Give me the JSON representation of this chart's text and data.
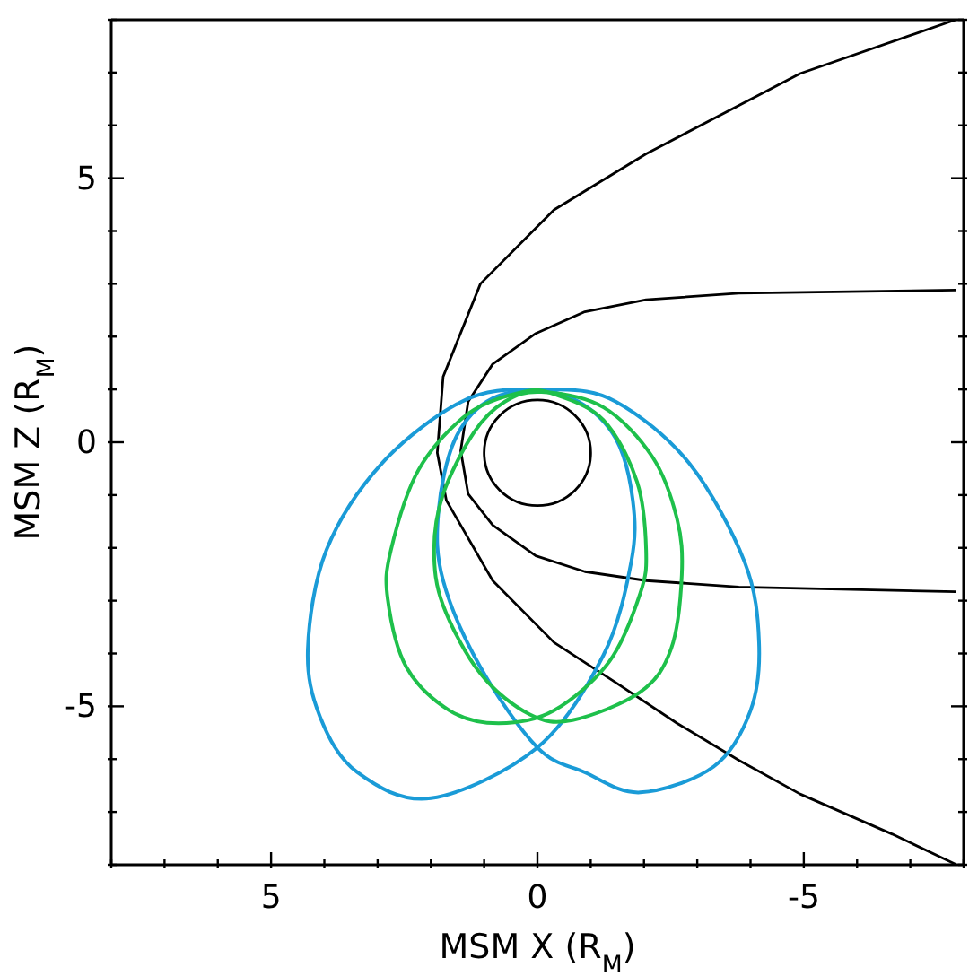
{
  "chart_data": {
    "type": "line",
    "xlabel": "MSM X (R$_{M}$)",
    "ylabel": "MSM Z (R$_{M}$)",
    "xlim": [
      8,
      -8
    ],
    "ylim": [
      -8,
      8
    ],
    "xticks": [
      {
        "value": 8,
        "label": null
      },
      {
        "value": 7,
        "label": null
      },
      {
        "value": 6,
        "label": null
      },
      5,
      {
        "value": 4,
        "label": null
      },
      {
        "value": 3,
        "label": null
      },
      {
        "value": 2,
        "label": null
      },
      {
        "value": 1,
        "label": null
      },
      0,
      {
        "value": -1,
        "label": null
      },
      {
        "value": -2,
        "label": null
      },
      {
        "value": -3,
        "label": null
      },
      {
        "value": -4,
        "label": null
      },
      -5,
      {
        "value": -6,
        "label": null
      },
      {
        "value": -7,
        "label": null
      },
      {
        "value": -8,
        "label": null
      }
    ],
    "yticks": [
      {
        "value": -8,
        "label": null
      },
      {
        "value": -7,
        "label": null
      },
      {
        "value": -6,
        "label": null
      },
      -5,
      {
        "value": -4,
        "label": null
      },
      {
        "value": -3,
        "label": null
      },
      {
        "value": -2,
        "label": null
      },
      {
        "value": -1,
        "label": null
      },
      0,
      {
        "value": 1,
        "label": null
      },
      {
        "value": 2,
        "label": null
      },
      {
        "value": 3,
        "label": null
      },
      {
        "value": 4,
        "label": null
      },
      5,
      {
        "value": 6,
        "label": null
      },
      {
        "value": 7,
        "label": null
      },
      {
        "value": 8,
        "label": null
      }
    ],
    "series": [
      {
        "color": "#000000",
        "x": [
          -7.85,
          -4.93,
          -2.04,
          -0.31,
          1.07,
          1.77,
          1.88,
          1.71,
          0.84,
          -0.31,
          -1.47,
          -2.62,
          -3.78,
          -4.93,
          -6.66,
          -7.85
        ],
        "values": [
          8.0,
          6.98,
          5.46,
          4.4,
          3.0,
          1.24,
          -0.2,
          -1.1,
          -2.62,
          -3.79,
          -4.55,
          -5.32,
          -6.02,
          -6.66,
          -7.42,
          -7.99
        ]
      },
      {
        "color": "#000000",
        "x": [
          -7.85,
          -3.78,
          -2.04,
          -0.89,
          0.03,
          0.84,
          1.3,
          1.44,
          1.3,
          0.84,
          0.03,
          -0.89,
          -2.04,
          -3.78,
          -7.85
        ],
        "values": [
          2.88,
          2.82,
          2.7,
          2.47,
          2.06,
          1.48,
          0.77,
          -0.16,
          -0.98,
          -1.57,
          -2.15,
          -2.45,
          -2.62,
          -2.74,
          -2.83
        ]
      }
    ]
  }
}
